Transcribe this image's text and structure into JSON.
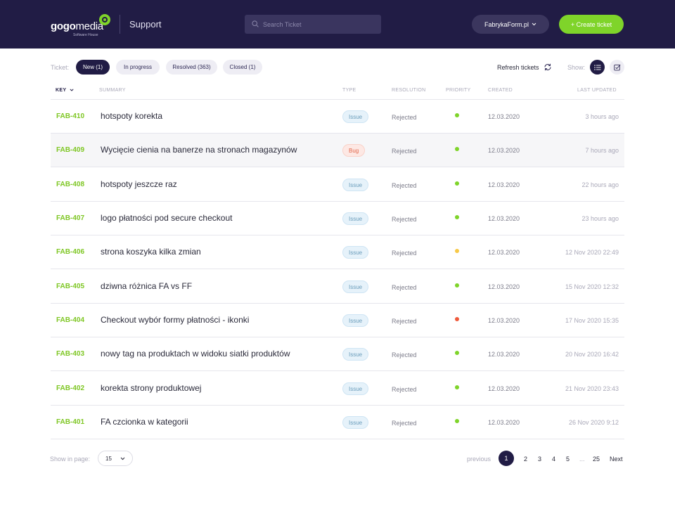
{
  "header": {
    "logo_bold": "gogo",
    "logo_light": "media",
    "logo_tagline": "Software House",
    "title": "Support",
    "search_placeholder": "Search Ticket",
    "project": "FabrykaForm.pl",
    "create_label": "+ Create ticket",
    "colors": {
      "background": "#211c45",
      "accent": "#7fd42a"
    }
  },
  "filters": {
    "label": "Ticket:",
    "pills": [
      {
        "label": "New (1)",
        "active": true
      },
      {
        "label": "In progress",
        "active": false
      },
      {
        "label": "Resolved (363)",
        "active": false
      },
      {
        "label": "Closed (1)",
        "active": false
      }
    ],
    "refresh_label": "Refresh tickets",
    "show_label": "Show:"
  },
  "table": {
    "columns": {
      "key": "KEY",
      "summary": "SUMMARY",
      "type": "TYPE",
      "resolution": "RESOLUTION",
      "priority": "PRIORITY",
      "created": "CREATED",
      "updated": "LAST UPDATED"
    },
    "rows": [
      {
        "key": "FAB-410",
        "summary": "hotspoty korekta",
        "type": "Issue",
        "resolution": "Rejected",
        "priority": "green",
        "created": "12.03.2020",
        "updated": "3 hours ago"
      },
      {
        "key": "FAB-409",
        "summary": "Wycięcie cienia na banerze na stronach magazynów",
        "type": "Bug",
        "resolution": "Rejected",
        "priority": "green",
        "created": "12.03.2020",
        "updated": "7 hours ago"
      },
      {
        "key": "FAB-408",
        "summary": "hotspoty jeszcze raz",
        "type": "Issue",
        "resolution": "Rejected",
        "priority": "green",
        "created": "12.03.2020",
        "updated": "22 hours ago"
      },
      {
        "key": "FAB-407",
        "summary": "logo płatności pod secure checkout",
        "type": "Issue",
        "resolution": "Rejected",
        "priority": "green",
        "created": "12.03.2020",
        "updated": "23 hours ago"
      },
      {
        "key": "FAB-406",
        "summary": "strona koszyka kilka zmian",
        "type": "Issue",
        "resolution": "Rejected",
        "priority": "yellow",
        "created": "12.03.2020",
        "updated": "12 Nov 2020  22:49"
      },
      {
        "key": "FAB-405",
        "summary": "dziwna różnica FA vs FF",
        "type": "Issue",
        "resolution": "Rejected",
        "priority": "green",
        "created": "12.03.2020",
        "updated": "15 Nov 2020  12:32"
      },
      {
        "key": "FAB-404",
        "summary": "Checkout wybór formy płatności - ikonki",
        "type": "Issue",
        "resolution": "Rejected",
        "priority": "red",
        "created": "12.03.2020",
        "updated": "17 Nov 2020  15:35"
      },
      {
        "key": "FAB-403",
        "summary": "nowy tag na produktach w widoku siatki produktów",
        "type": "Issue",
        "resolution": "Rejected",
        "priority": "green",
        "created": "12.03.2020",
        "updated": "20 Nov 2020  16:42"
      },
      {
        "key": "FAB-402",
        "summary": "korekta strony produktowej",
        "type": "Issue",
        "resolution": "Rejected",
        "priority": "green",
        "created": "12.03.2020",
        "updated": "21 Nov 2020  23:43"
      },
      {
        "key": "FAB-401",
        "summary": "FA czcionka w kategorii",
        "type": "Issue",
        "resolution": "Rejected",
        "priority": "green",
        "created": "12.03.2020",
        "updated": "26 Nov 2020  9:12"
      }
    ],
    "priority_colors": {
      "green": "#7fd42a",
      "yellow": "#f7c948",
      "red": "#ef5a3c"
    }
  },
  "footer": {
    "show_in_page_label": "Show in page:",
    "page_size": "15",
    "previous_label": "previous",
    "pages": [
      "1",
      "2",
      "3",
      "4",
      "5"
    ],
    "ellipsis": "...",
    "last_page": "25",
    "next_label": "Next",
    "current_page": "1"
  }
}
